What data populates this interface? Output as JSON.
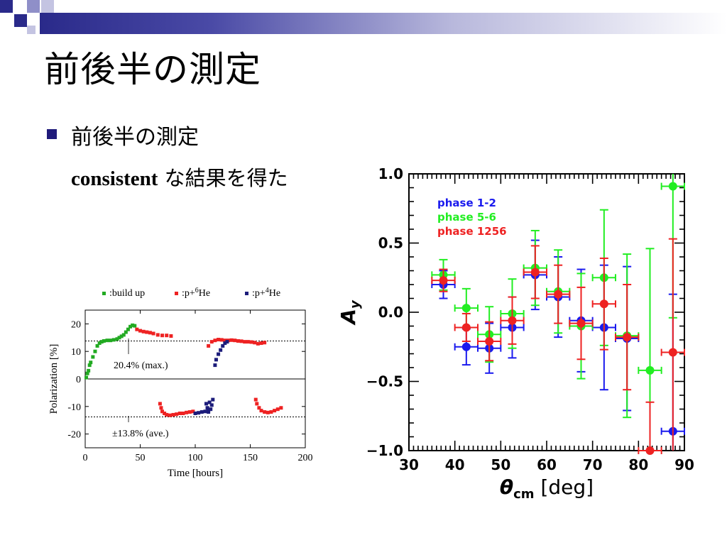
{
  "slide": {
    "title": "前後半の測定",
    "bullet": "前後半の測定",
    "sub_en": "consistent",
    "sub_ja": " な結果を得た"
  },
  "colors": {
    "bullet": "#1f1a7a",
    "green": "#22aa22",
    "red": "#ee2222",
    "navy": "#1c1c7a",
    "blue": "#1a1aee",
    "lime": "#22ee22"
  },
  "chart_data": [
    {
      "type": "scatter",
      "title": "",
      "xlabel": "Time [hours]",
      "ylabel": "Polarization [%]",
      "xlim": [
        0,
        200
      ],
      "ylim": [
        -25,
        25
      ],
      "xticks": [
        "0",
        "50",
        "100",
        "150",
        "200"
      ],
      "yticks": [
        "20",
        "10",
        "0",
        "-10",
        "-20"
      ],
      "legend": ":build up|:p+6He|:p+4He",
      "legend_items": [
        {
          "name": ":build up",
          "color": "#22aa22"
        },
        {
          "name": ":p+",
          "sup": "6",
          "tail": "He",
          "color": "#ee2222"
        },
        {
          "name": ":p+",
          "sup": "4",
          "tail": "He",
          "color": "#1c1c7a"
        }
      ],
      "reference_lines": [
        13.8,
        -13.8
      ],
      "annotations": [
        "20.4% (max.)",
        "±13.8% (ave.)"
      ],
      "series": [
        {
          "name": ":build up",
          "color": "#22aa22",
          "points": [
            [
              1,
              0.5
            ],
            [
              2,
              2
            ],
            [
              3,
              3
            ],
            [
              4,
              5
            ],
            [
              5,
              6
            ],
            [
              7,
              8
            ],
            [
              9,
              10
            ],
            [
              11,
              12
            ],
            [
              13,
              13
            ],
            [
              15,
              13.5
            ],
            [
              17,
              13.8
            ],
            [
              20,
              14
            ],
            [
              23,
              14
            ],
            [
              26,
              14.2
            ],
            [
              29,
              14.5
            ],
            [
              31,
              15
            ],
            [
              33,
              15.5
            ],
            [
              35,
              16
            ],
            [
              37,
              17
            ],
            [
              39,
              18
            ],
            [
              41,
              19
            ],
            [
              43,
              19.5
            ],
            [
              45,
              19.3
            ]
          ]
        },
        {
          "name": ":p+6He",
          "color": "#ee2222",
          "points": [
            [
              47,
              18
            ],
            [
              50,
              17.5
            ],
            [
              53,
              17.2
            ],
            [
              56,
              17
            ],
            [
              59,
              16.8
            ],
            [
              62,
              16.5
            ],
            [
              66,
              16
            ],
            [
              70,
              15.8
            ],
            [
              74,
              15.8
            ],
            [
              78,
              15.6
            ],
            [
              112,
              12
            ],
            [
              115,
              13.5
            ],
            [
              118,
              14
            ],
            [
              121,
              14.3
            ],
            [
              124,
              14.2
            ],
            [
              127,
              14
            ],
            [
              130,
              14
            ],
            [
              133,
              14.1
            ],
            [
              136,
              14
            ],
            [
              139,
              13.8
            ],
            [
              142,
              13.7
            ],
            [
              145,
              13.5
            ],
            [
              148,
              13.5
            ],
            [
              151,
              13.4
            ],
            [
              154,
              13.2
            ],
            [
              157,
              12.8
            ],
            [
              160,
              13
            ],
            [
              163,
              13.2
            ],
            [
              68,
              -9
            ],
            [
              69,
              -10.5
            ],
            [
              70,
              -11.8
            ],
            [
              72,
              -12.5
            ],
            [
              74,
              -13
            ],
            [
              77,
              -13.2
            ],
            [
              80,
              -13
            ],
            [
              83,
              -12.8
            ],
            [
              86,
              -12.5
            ],
            [
              89,
              -12.5
            ],
            [
              92,
              -12.2
            ],
            [
              95,
              -12
            ],
            [
              98,
              -11.8
            ],
            [
              155,
              -7.5
            ],
            [
              156,
              -9
            ],
            [
              158,
              -10.5
            ],
            [
              160,
              -11.5
            ],
            [
              163,
              -12
            ],
            [
              166,
              -12.2
            ],
            [
              169,
              -12
            ],
            [
              172,
              -11.5
            ],
            [
              175,
              -11
            ],
            [
              178,
              -10.5
            ]
          ]
        },
        {
          "name": ":p+4He",
          "color": "#1c1c7a",
          "points": [
            [
              110,
              -9
            ],
            [
              111,
              -10.5
            ],
            [
              112,
              -12
            ],
            [
              113,
              -8.5
            ],
            [
              114,
              -11
            ],
            [
              115,
              -9.5
            ],
            [
              116,
              -7.5
            ],
            [
              118,
              5
            ],
            [
              119,
              7
            ],
            [
              121,
              9
            ],
            [
              123,
              10.5
            ],
            [
              125,
              12
            ],
            [
              127,
              13
            ],
            [
              129,
              13.5
            ],
            [
              100,
              -12.5
            ],
            [
              103,
              -12.3
            ],
            [
              106,
              -12
            ],
            [
              109,
              -11.8
            ],
            [
              112,
              -11.5
            ]
          ]
        }
      ]
    },
    {
      "type": "scatter",
      "title": "",
      "xlabel": "θcm [deg]",
      "ylabel": "Ay",
      "xlim": [
        30,
        90
      ],
      "ylim": [
        -1.0,
        1.0
      ],
      "xticks": [
        "30",
        "40",
        "50",
        "60",
        "70",
        "80",
        "90"
      ],
      "yticks": [
        "1.0",
        "0.5",
        "0.0",
        "−0.5",
        "−1.0"
      ],
      "legend_position": "top-left",
      "series": [
        {
          "name": "phase 1-2",
          "color": "#1a1aee",
          "x": [
            37.5,
            42.5,
            47.5,
            52.5,
            57.5,
            62.5,
            67.5,
            72.5,
            77.5,
            87.5
          ],
          "y": [
            0.2,
            -0.25,
            -0.26,
            -0.11,
            0.27,
            0.11,
            -0.06,
            -0.11,
            -0.19,
            -0.86
          ],
          "yerr": [
            0.1,
            0.13,
            0.18,
            0.22,
            0.25,
            0.29,
            0.37,
            0.45,
            0.52,
            0.99
          ]
        },
        {
          "name": "phase 5-6",
          "color": "#22ee22",
          "x": [
            37.5,
            42.5,
            47.5,
            52.5,
            57.5,
            62.5,
            67.5,
            72.5,
            77.5,
            82.5,
            87.5
          ],
          "y": [
            0.27,
            0.03,
            -0.16,
            -0.01,
            0.32,
            0.15,
            -0.1,
            0.25,
            -0.17,
            -0.42,
            0.91
          ],
          "yerr": [
            0.11,
            0.14,
            0.2,
            0.25,
            0.27,
            0.3,
            0.38,
            0.49,
            0.59,
            0.88,
            0.95
          ]
        },
        {
          "name": "phase 1256",
          "color": "#ee2222",
          "x": [
            37.5,
            42.5,
            47.5,
            52.5,
            57.5,
            62.5,
            67.5,
            72.5,
            77.5,
            82.5,
            87.5
          ],
          "y": [
            0.23,
            -0.11,
            -0.21,
            -0.06,
            0.29,
            0.13,
            -0.08,
            0.06,
            -0.18,
            -1.0,
            -0.29
          ],
          "yerr": [
            0.08,
            0.1,
            0.14,
            0.17,
            0.19,
            0.21,
            0.26,
            0.33,
            0.38,
            0.35,
            0.82
          ]
        }
      ]
    }
  ]
}
